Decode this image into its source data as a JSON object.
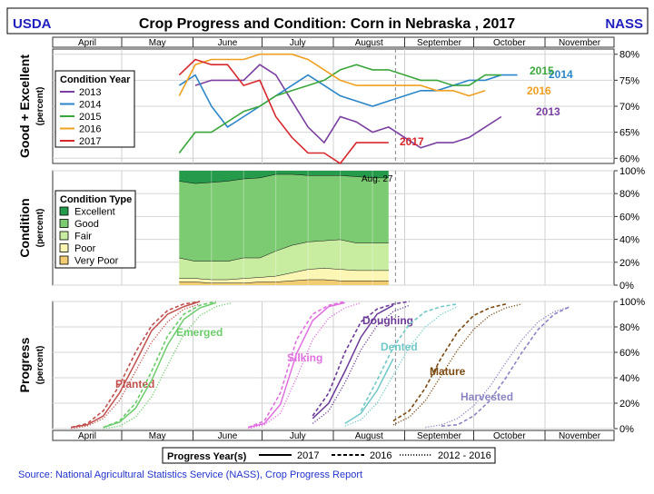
{
  "header": {
    "left_logo": "USDA",
    "right_logo": "NASS",
    "title": "Crop Progress and Condition: Corn in Nebraska , 2017"
  },
  "months": [
    "April",
    "May",
    "June",
    "July",
    "August",
    "September",
    "October",
    "November"
  ],
  "colors": {
    "y2013": "#7a3fa0",
    "y2014": "#2a86c8",
    "y2015": "#3aa63a",
    "y2016": "#f0a020",
    "y2017": "#d8282c",
    "excellent": "#249a4a",
    "good": "#7cca72",
    "fair": "#c8eca0",
    "poor": "#fbf6b4",
    "very_poor": "#f2cc70",
    "title_blue": "#1f1fbf",
    "source_blue": "#2233cc"
  },
  "chart_data": [
    {
      "id": "good_excellent",
      "type": "line",
      "ylabel": "Good + Excellent",
      "ylabel_sub": "(percent)",
      "ylim": [
        59,
        81
      ],
      "y_ticks": [
        60,
        65,
        70,
        75,
        80
      ],
      "y_tick_labels": [
        "60%",
        "65%",
        "70%",
        "75%",
        "80%"
      ],
      "x_unit": "day_of_year",
      "legend_title": "Condition Year",
      "series": [
        {
          "name": "2013",
          "label": "2013",
          "color": "#7a3fa0",
          "x": [
            153,
            160,
            167,
            174,
            181,
            188,
            195,
            202,
            209,
            216,
            223,
            230,
            237,
            244,
            251,
            258,
            265,
            272,
            279,
            286
          ],
          "values": [
            74,
            75,
            75,
            75,
            78,
            76,
            71,
            66,
            63,
            68,
            67,
            65,
            66,
            64,
            62,
            63,
            63,
            64,
            66,
            68
          ]
        },
        {
          "name": "2014",
          "label": "2014",
          "color": "#2a86c8",
          "x": [
            146,
            153,
            160,
            167,
            174,
            181,
            188,
            195,
            202,
            209,
            216,
            223,
            230,
            237,
            244,
            251,
            258,
            265,
            272,
            279,
            286,
            293
          ],
          "values": [
            74,
            76,
            70,
            66,
            68,
            70,
            72,
            74,
            76,
            74,
            72,
            71,
            70,
            71,
            72,
            73,
            73,
            74,
            75,
            75,
            76,
            76
          ]
        },
        {
          "name": "2015",
          "label": "2015",
          "color": "#3aa63a",
          "x": [
            146,
            153,
            160,
            167,
            174,
            181,
            188,
            195,
            202,
            209,
            216,
            223,
            230,
            237,
            244,
            251,
            258,
            265,
            272,
            279,
            286
          ],
          "values": [
            61,
            65,
            65,
            67,
            69,
            70,
            72,
            73,
            74,
            75,
            77,
            78,
            77,
            77,
            76,
            75,
            75,
            74,
            74,
            76,
            76
          ]
        },
        {
          "name": "2016",
          "label": "2016",
          "color": "#f0a020",
          "x": [
            146,
            153,
            160,
            167,
            174,
            181,
            188,
            195,
            202,
            209,
            216,
            223,
            230,
            237,
            244,
            251,
            258,
            265,
            272,
            279
          ],
          "values": [
            72,
            78,
            79,
            79,
            79,
            80,
            80,
            80,
            79,
            77,
            75,
            74,
            74,
            74,
            74,
            74,
            73,
            73,
            72,
            73
          ]
        },
        {
          "name": "2017",
          "label": "2017",
          "color": "#d8282c",
          "x": [
            146,
            153,
            160,
            167,
            174,
            181,
            188,
            195,
            202,
            209,
            216,
            223,
            230,
            237
          ],
          "values": [
            76,
            79,
            78,
            78,
            74,
            75,
            68,
            64,
            61,
            61,
            59,
            63,
            63,
            63
          ]
        }
      ]
    },
    {
      "id": "condition",
      "type": "area",
      "ylabel": "Condition",
      "ylabel_sub": "(percent)",
      "ylim": [
        0,
        100
      ],
      "y_ticks": [
        0,
        20,
        40,
        60,
        80,
        100
      ],
      "y_tick_labels": [
        "0%",
        "20%",
        "40%",
        "60%",
        "80%",
        "100%"
      ],
      "legend_title": "Condition Type",
      "annotation": "Aug. 27",
      "x": [
        146,
        153,
        160,
        167,
        174,
        181,
        188,
        195,
        202,
        209,
        216,
        223,
        230,
        237
      ],
      "series": [
        {
          "name": "Very Poor",
          "color": "#f2cc70",
          "values": [
            3,
            3,
            2,
            2,
            2,
            3,
            3,
            4,
            5,
            5,
            4,
            4,
            4,
            4
          ]
        },
        {
          "name": "Poor",
          "color": "#fbf6b4",
          "values": [
            3,
            3,
            3,
            3,
            4,
            4,
            5,
            7,
            9,
            10,
            10,
            9,
            9,
            9
          ]
        },
        {
          "name": "Fair",
          "color": "#c8eca0",
          "values": [
            18,
            15,
            16,
            16,
            18,
            17,
            22,
            24,
            24,
            24,
            26,
            24,
            24,
            24
          ]
        },
        {
          "name": "Good",
          "color": "#7cca72",
          "values": [
            67,
            68,
            69,
            70,
            69,
            70,
            67,
            62,
            58,
            57,
            56,
            58,
            57,
            57
          ]
        },
        {
          "name": "Excellent",
          "color": "#249a4a",
          "values": [
            9,
            11,
            10,
            9,
            7,
            6,
            3,
            3,
            4,
            4,
            4,
            5,
            6,
            6
          ]
        }
      ]
    },
    {
      "id": "progress",
      "type": "line",
      "ylabel": "Progress",
      "ylabel_sub": "(percent)",
      "ylim": [
        0,
        100
      ],
      "y_ticks": [
        0,
        20,
        40,
        60,
        80,
        100
      ],
      "y_tick_labels": [
        "0%",
        "20%",
        "40%",
        "60%",
        "80%",
        "100%"
      ],
      "legend_title": "Progress Year(s)",
      "legend_items": [
        "2017",
        "2016",
        "2012 - 2016"
      ],
      "stages": [
        {
          "name": "Planted",
          "label": "Planted",
          "color": "#c0504d",
          "s2017": {
            "x": [
              99,
              106,
              113,
              120,
              127,
              134,
              141,
              148,
              155
            ],
            "values": [
              1,
              3,
              10,
              28,
              52,
              77,
              90,
              96,
              100
            ]
          },
          "s2016": {
            "x": [
              99,
              106,
              113,
              120,
              127,
              134,
              141,
              148,
              155
            ],
            "values": [
              1,
              4,
              14,
              34,
              60,
              81,
              93,
              98,
              100
            ]
          },
          "savg": {
            "x": [
              99,
              106,
              113,
              120,
              127,
              134,
              141,
              148,
              155
            ],
            "values": [
              0,
              2,
              8,
              22,
              45,
              68,
              84,
              94,
              98
            ]
          }
        },
        {
          "name": "Emerged",
          "label": "Emerged",
          "color": "#6ccc6c",
          "s2017": {
            "x": [
              113,
              120,
              127,
              134,
              141,
              148,
              155,
              162
            ],
            "values": [
              1,
              5,
              16,
              38,
              66,
              86,
              95,
              99
            ]
          },
          "s2016": {
            "x": [
              113,
              120,
              127,
              134,
              141,
              148,
              155,
              162
            ],
            "values": [
              1,
              6,
              20,
              45,
              73,
              90,
              97,
              100
            ]
          },
          "savg": {
            "x": [
              113,
              120,
              127,
              134,
              141,
              148,
              155,
              162,
              169
            ],
            "values": [
              0,
              2,
              9,
              25,
              50,
              74,
              89,
              96,
              99
            ]
          }
        },
        {
          "name": "Silking",
          "label": "Silking",
          "color": "#e070e0",
          "s2017": {
            "x": [
              176,
              183,
              190,
              197,
              204,
              211,
              218
            ],
            "values": [
              1,
              4,
              19,
              59,
              85,
              96,
              99
            ]
          },
          "s2016": {
            "x": [
              176,
              183,
              190,
              197,
              204,
              211,
              218
            ],
            "values": [
              1,
              6,
              28,
              70,
              90,
              97,
              100
            ]
          },
          "savg": {
            "x": [
              176,
              183,
              190,
              197,
              204,
              211,
              218,
              225
            ],
            "values": [
              0,
              3,
              12,
              40,
              70,
              87,
              95,
              99
            ]
          }
        },
        {
          "name": "Doughing",
          "label": "Doughing",
          "color": "#6a3a96",
          "s2017": {
            "x": [
              204,
              211,
              218,
              225,
              232,
              239
            ],
            "values": [
              8,
              20,
              45,
              72,
              90,
              97
            ]
          },
          "s2016": {
            "x": [
              204,
              211,
              218,
              225,
              232,
              239,
              246
            ],
            "values": [
              10,
              28,
              60,
              84,
              94,
              98,
              100
            ]
          },
          "savg": {
            "x": [
              204,
              211,
              218,
              225,
              232,
              239,
              246
            ],
            "values": [
              4,
              14,
              36,
              62,
              81,
              92,
              97
            ]
          }
        },
        {
          "name": "Dented",
          "label": "Dented",
          "color": "#70c8c8",
          "s2017": {
            "x": [
              218,
              225,
              232,
              239
            ],
            "values": [
              4,
              12,
              30,
              55
            ]
          },
          "s2016": {
            "x": [
              225,
              232,
              239,
              246,
              253,
              260,
              267
            ],
            "values": [
              14,
              38,
              64,
              82,
              92,
              96,
              98
            ]
          },
          "savg": {
            "x": [
              218,
              225,
              232,
              239,
              246,
              253,
              260,
              267
            ],
            "values": [
              2,
              7,
              20,
              42,
              64,
              80,
              90,
              96
            ]
          }
        },
        {
          "name": "Mature",
          "label": "Mature",
          "color": "#7a4a10",
          "s2016": {
            "x": [
              239,
              246,
              253,
              260,
              267,
              274,
              281,
              288
            ],
            "values": [
              6,
              14,
              32,
              56,
              76,
              89,
              95,
              98
            ]
          },
          "savg": {
            "x": [
              239,
              246,
              253,
              260,
              267,
              274,
              281,
              288,
              295
            ],
            "values": [
              3,
              9,
              22,
              42,
              62,
              78,
              89,
              95,
              98
            ]
          }
        },
        {
          "name": "Harvested",
          "label": "Harvested",
          "color": "#8a84c0",
          "s2016": {
            "x": [
              260,
              267,
              274,
              281,
              288,
              295,
              302,
              309,
              316
            ],
            "values": [
              2,
              3,
              10,
              22,
              40,
              60,
              78,
              90,
              96
            ]
          },
          "savg": {
            "x": [
              253,
              260,
              267,
              274,
              281,
              288,
              295,
              302,
              309,
              316
            ],
            "values": [
              1,
              3,
              8,
              18,
              33,
              52,
              70,
              84,
              92,
              96
            ]
          }
        }
      ]
    }
  ],
  "footer": {
    "source": "Source: National Agricultural Statistics Service (NASS), Crop Progress Report"
  }
}
